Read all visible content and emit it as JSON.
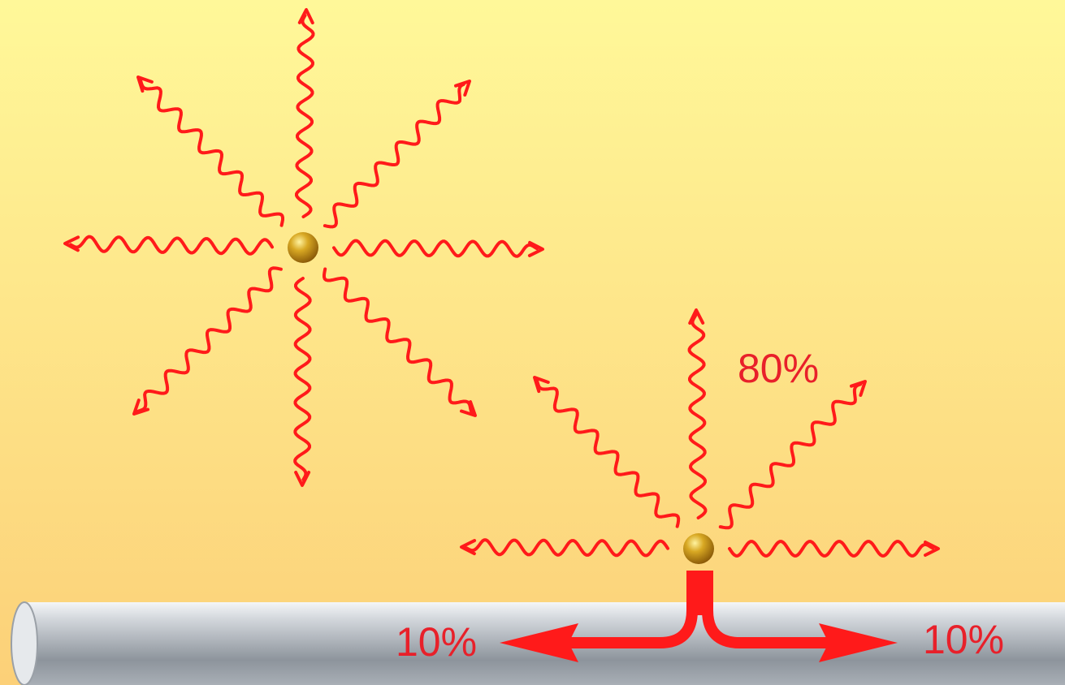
{
  "labels": [
    "80%",
    "10%",
    "10%"
  ]
}
